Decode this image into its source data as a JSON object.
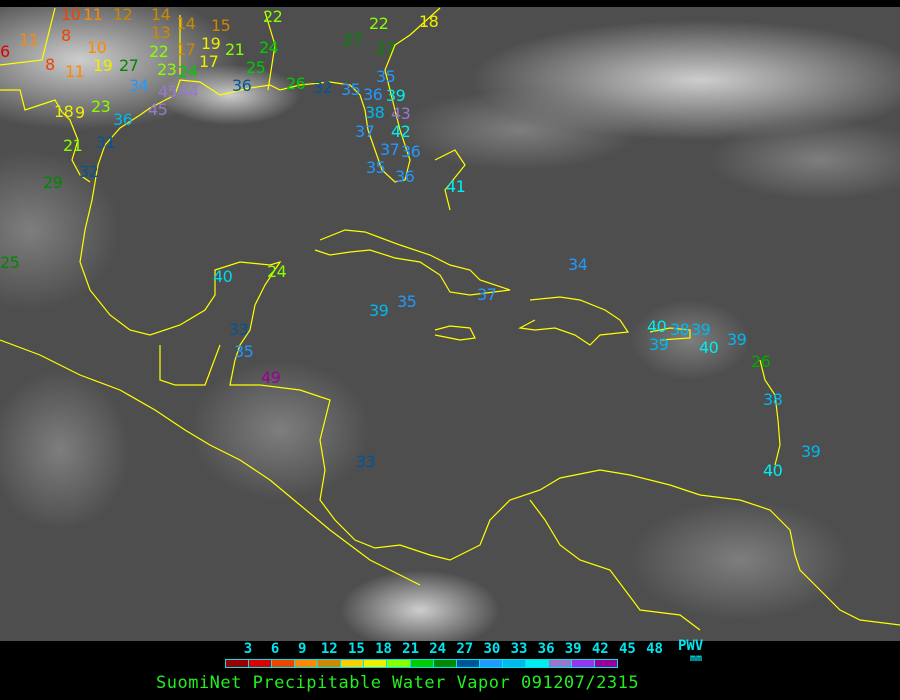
{
  "title": "SuomiNet Precipitable Water Vapor 091207/2315",
  "legend": {
    "unit_label": "PWV",
    "unit": "mm",
    "ticks": [
      "3",
      "6",
      "9",
      "12",
      "15",
      "18",
      "21",
      "24",
      "27",
      "30",
      "33",
      "36",
      "39",
      "42",
      "45",
      "48"
    ],
    "colors": [
      "#990000",
      "#dd0000",
      "#ee4400",
      "#ff8800",
      "#cc8800",
      "#ffcc00",
      "#eeee00",
      "#88ff00",
      "#00cc00",
      "#008800",
      "#005599",
      "#2299ff",
      "#00b8ee",
      "#00eeee",
      "#9977cc",
      "#9933ee",
      "#990099"
    ]
  },
  "map": {
    "background": "#4e4e4e",
    "coastline_color": "#ffff00",
    "stations": [
      {
        "value": "10",
        "color": "#ee4400"
      },
      {
        "value": "11",
        "color": "#ff8800"
      },
      {
        "value": "12",
        "color": "#cc8800"
      },
      {
        "value": "14",
        "color": "#cc8800"
      },
      {
        "value": "13",
        "color": "#cc8800"
      },
      {
        "value": "14",
        "color": "#cc8800"
      },
      {
        "value": "15",
        "color": "#cc8800"
      },
      {
        "value": "22",
        "color": "#88ff00"
      },
      {
        "value": "22",
        "color": "#88ff00"
      },
      {
        "value": "18",
        "color": "#eeee00"
      },
      {
        "value": "27",
        "color": "#008800"
      },
      {
        "value": "27",
        "color": "#008800"
      },
      {
        "value": "11",
        "color": "#ff8800"
      },
      {
        "value": "6",
        "color": "#dd0000"
      },
      {
        "value": "8",
        "color": "#ee4400"
      },
      {
        "value": "10",
        "color": "#ff8800"
      },
      {
        "value": "8",
        "color": "#ee4400"
      },
      {
        "value": "11",
        "color": "#ff8800"
      },
      {
        "value": "19",
        "color": "#eeee00"
      },
      {
        "value": "27",
        "color": "#008800"
      },
      {
        "value": "22",
        "color": "#88ff00"
      },
      {
        "value": "17",
        "color": "#cc8800"
      },
      {
        "value": "19",
        "color": "#eeee00"
      },
      {
        "value": "21",
        "color": "#88ff00"
      },
      {
        "value": "24",
        "color": "#00cc00"
      },
      {
        "value": "17",
        "color": "#eeee00"
      },
      {
        "value": "23",
        "color": "#88ff00"
      },
      {
        "value": "24",
        "color": "#00cc00"
      },
      {
        "value": "25",
        "color": "#00cc00"
      },
      {
        "value": "34",
        "color": "#2299ff"
      },
      {
        "value": "45",
        "color": "#9977cc"
      },
      {
        "value": "44",
        "color": "#9977cc"
      },
      {
        "value": "45",
        "color": "#9977cc"
      },
      {
        "value": "36",
        "color": "#005599"
      },
      {
        "value": "26",
        "color": "#00cc00"
      },
      {
        "value": "32",
        "color": "#005599"
      },
      {
        "value": "35",
        "color": "#2299ff"
      },
      {
        "value": "35",
        "color": "#2299ff"
      },
      {
        "value": "36",
        "color": "#2299ff"
      },
      {
        "value": "38",
        "color": "#00b8ee"
      },
      {
        "value": "39",
        "color": "#00eeee"
      },
      {
        "value": "43",
        "color": "#9977cc"
      },
      {
        "value": "42",
        "color": "#00eeee"
      },
      {
        "value": "37",
        "color": "#2299ff"
      },
      {
        "value": "37",
        "color": "#2299ff"
      },
      {
        "value": "36",
        "color": "#2299ff"
      },
      {
        "value": "35",
        "color": "#2299ff"
      },
      {
        "value": "36",
        "color": "#2299ff"
      },
      {
        "value": "41",
        "color": "#00eeee"
      },
      {
        "value": "18",
        "color": "#eeee00"
      },
      {
        "value": "9",
        "color": "#eeee00"
      },
      {
        "value": "23",
        "color": "#88ff00"
      },
      {
        "value": "36",
        "color": "#00b8ee"
      },
      {
        "value": "31",
        "color": "#005599"
      },
      {
        "value": "21",
        "color": "#88ff00"
      },
      {
        "value": "32",
        "color": "#005599"
      },
      {
        "value": "29",
        "color": "#008800"
      },
      {
        "value": "25",
        "color": "#008800"
      },
      {
        "value": "40",
        "color": "#00d8ee"
      },
      {
        "value": "24",
        "color": "#88ff00"
      },
      {
        "value": "34",
        "color": "#2299ff"
      },
      {
        "value": "37",
        "color": "#2299ff"
      },
      {
        "value": "35",
        "color": "#2299ff"
      },
      {
        "value": "39",
        "color": "#00b8ee"
      },
      {
        "value": "33",
        "color": "#005599"
      },
      {
        "value": "35",
        "color": "#2299ff"
      },
      {
        "value": "49",
        "color": "#990099"
      },
      {
        "value": "33",
        "color": "#005599"
      },
      {
        "value": "40",
        "color": "#00eeee"
      },
      {
        "value": "38",
        "color": "#00b8ee"
      },
      {
        "value": "39",
        "color": "#00b8ee"
      },
      {
        "value": "39",
        "color": "#00b8ee"
      },
      {
        "value": "40",
        "color": "#00eeee"
      },
      {
        "value": "39",
        "color": "#00b8ee"
      },
      {
        "value": "26",
        "color": "#00aa00"
      },
      {
        "value": "38",
        "color": "#00b8ee"
      },
      {
        "value": "39",
        "color": "#00b8ee"
      },
      {
        "value": "40",
        "color": "#00eeee"
      }
    ]
  }
}
